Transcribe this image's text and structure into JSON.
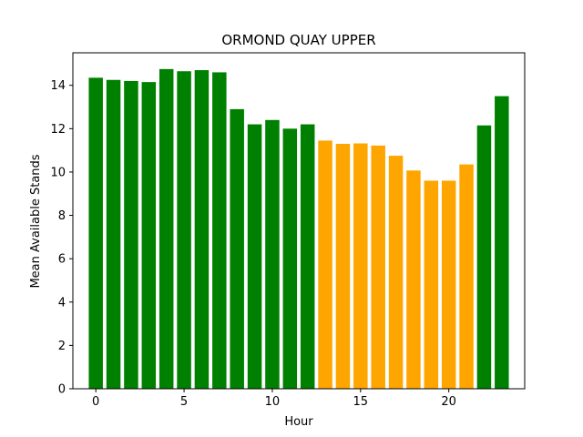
{
  "chart_data": {
    "type": "bar",
    "title": "ORMOND QUAY UPPER",
    "xlabel": "Hour",
    "ylabel": "Mean Available Stands",
    "x": [
      0,
      1,
      2,
      3,
      4,
      5,
      6,
      7,
      8,
      9,
      10,
      11,
      12,
      13,
      14,
      15,
      16,
      17,
      18,
      19,
      20,
      21,
      22,
      23
    ],
    "values": [
      14.35,
      14.25,
      14.2,
      14.15,
      14.75,
      14.65,
      14.7,
      14.6,
      12.9,
      12.2,
      12.4,
      12.0,
      12.2,
      11.45,
      11.3,
      11.32,
      11.22,
      10.75,
      10.07,
      9.6,
      9.6,
      10.35,
      12.15,
      13.5
    ],
    "colors": [
      "green",
      "green",
      "green",
      "green",
      "green",
      "green",
      "green",
      "green",
      "green",
      "green",
      "green",
      "green",
      "green",
      "orange",
      "orange",
      "orange",
      "orange",
      "orange",
      "orange",
      "orange",
      "orange",
      "orange",
      "green",
      "green"
    ],
    "palette": {
      "green": "#008000",
      "orange": "#ffa500"
    },
    "xlim": [
      -1.3,
      24.3
    ],
    "ylim": [
      0,
      15.5
    ],
    "xticks": [
      0,
      5,
      10,
      15,
      20
    ],
    "yticks": [
      0,
      2,
      4,
      6,
      8,
      10,
      12,
      14
    ],
    "grid": false,
    "legend": "none"
  }
}
